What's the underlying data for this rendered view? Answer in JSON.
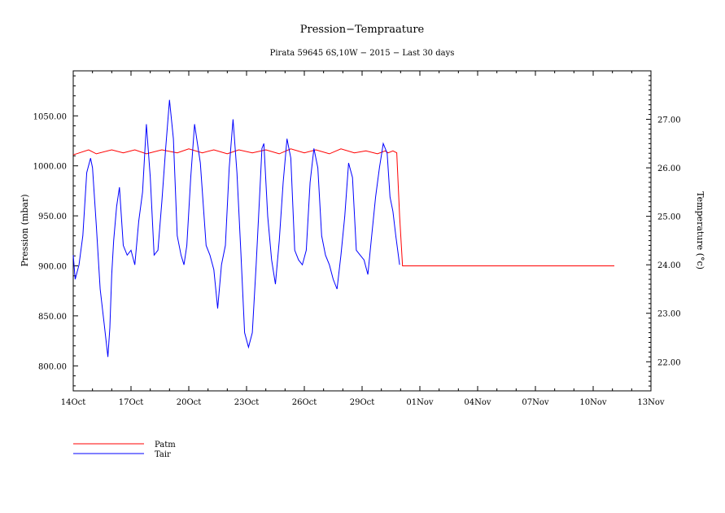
{
  "chart_data": {
    "type": "line",
    "title": "Pression−Tempraature",
    "subtitle": "Pirata 59645 6S,10W − 2015 − Last 30 days",
    "ylabel_left": "Pression (mbar)",
    "ylabel_right": "Temperature (°c)",
    "x_ticks": [
      "14Oct",
      "17Oct",
      "20Oct",
      "23Oct",
      "26Oct",
      "29Oct",
      "01Nov",
      "04Nov",
      "07Nov",
      "10Nov",
      "13Nov"
    ],
    "x_range_days": [
      0,
      30
    ],
    "y_left_ticks": [
      "800.00",
      "850.00",
      "900.00",
      "950.00",
      "1000.00",
      "1050.00"
    ],
    "y_left_range": [
      775,
      1095
    ],
    "y_right_ticks": [
      "22.00",
      "23.00",
      "24.00",
      "25.00",
      "26.00",
      "27.00"
    ],
    "y_right_range": [
      21.4,
      28.0
    ],
    "series": [
      {
        "name": "Patm",
        "color": "#ff0000",
        "axis": "left",
        "x_days": [
          0.0,
          0.8,
          1.2,
          2.0,
          2.6,
          3.2,
          3.8,
          4.6,
          5.4,
          6.0,
          6.7,
          7.3,
          8.0,
          8.6,
          9.3,
          10.0,
          10.7,
          11.3,
          12.0,
          12.6,
          13.3,
          13.9,
          14.6,
          15.2,
          15.8,
          16.2,
          16.35,
          16.6,
          16.8,
          16.95,
          17.1,
          18.0,
          20.0,
          22.0,
          24.0,
          26.0,
          28.1
        ],
        "values": [
          1011,
          1016,
          1012,
          1016,
          1013,
          1016,
          1012,
          1016,
          1013,
          1017,
          1013,
          1016,
          1012,
          1016,
          1013,
          1016,
          1012,
          1017,
          1013,
          1016,
          1012,
          1017,
          1013,
          1015,
          1012,
          1015,
          1013,
          1015,
          1013,
          950,
          900,
          900,
          900,
          900,
          900,
          900,
          900
        ]
      },
      {
        "name": "Tair",
        "color": "#0000ff",
        "axis": "right",
        "x_days": [
          0.0,
          0.1,
          0.3,
          0.5,
          0.7,
          0.9,
          1.0,
          1.2,
          1.4,
          1.6,
          1.8,
          1.9,
          2.0,
          2.1,
          2.25,
          2.4,
          2.6,
          2.8,
          3.0,
          3.2,
          3.4,
          3.6,
          3.8,
          4.0,
          4.2,
          4.4,
          4.6,
          4.8,
          5.0,
          5.2,
          5.4,
          5.6,
          5.75,
          5.9,
          6.1,
          6.3,
          6.6,
          6.9,
          7.1,
          7.3,
          7.5,
          7.7,
          7.9,
          8.1,
          8.3,
          8.5,
          8.7,
          8.9,
          9.1,
          9.3,
          9.5,
          9.7,
          9.8,
          9.9,
          10.1,
          10.3,
          10.5,
          10.7,
          10.9,
          11.1,
          11.3,
          11.5,
          11.7,
          11.9,
          12.1,
          12.3,
          12.5,
          12.7,
          12.9,
          13.1,
          13.3,
          13.5,
          13.7,
          13.9,
          14.1,
          14.3,
          14.5,
          14.7,
          14.9,
          15.1,
          15.3,
          15.5,
          15.7,
          15.9,
          16.1,
          16.3,
          16.45,
          16.6,
          16.75,
          16.95
        ],
        "values": [
          24.2,
          23.7,
          24.0,
          24.6,
          25.9,
          26.2,
          26.0,
          24.8,
          23.5,
          22.8,
          22.1,
          22.7,
          23.8,
          24.5,
          25.2,
          25.6,
          24.4,
          24.2,
          24.3,
          24.0,
          24.9,
          25.5,
          26.9,
          25.8,
          24.2,
          24.3,
          25.3,
          26.4,
          27.4,
          26.6,
          24.6,
          24.2,
          24.0,
          24.4,
          25.8,
          26.9,
          26.1,
          24.4,
          24.2,
          23.9,
          23.1,
          24.0,
          24.4,
          26.0,
          27.0,
          25.9,
          24.3,
          22.6,
          22.3,
          22.6,
          24.0,
          25.6,
          26.4,
          26.5,
          25.0,
          24.1,
          23.6,
          24.5,
          25.7,
          26.6,
          26.2,
          24.3,
          24.1,
          24.0,
          24.3,
          25.7,
          26.4,
          26.0,
          24.6,
          24.2,
          24.0,
          23.7,
          23.5,
          24.2,
          25.0,
          26.1,
          25.8,
          24.3,
          24.2,
          24.1,
          23.8,
          24.6,
          25.4,
          26.0,
          26.5,
          26.3,
          25.4,
          25.1,
          24.6,
          24.0
        ]
      }
    ],
    "legend_placement": "bottom-left",
    "grid": false
  }
}
